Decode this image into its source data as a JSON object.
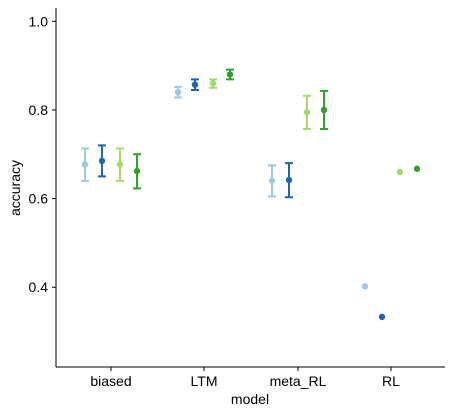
{
  "chart_data": {
    "type": "scatter",
    "xlabel": "model",
    "ylabel": "accuracy",
    "ylim": [
      0.22,
      1.03
    ],
    "yticks": [
      0.4,
      0.6,
      0.8,
      1.0
    ],
    "ytick_labels": [
      "0.4",
      "0.6",
      "0.8",
      "1.0"
    ],
    "categories": [
      "biased",
      "LTM",
      "meta_RL",
      "RL"
    ],
    "legend": "none",
    "grid": false,
    "series": [
      {
        "color": "#9ecae1",
        "values": [
          0.677,
          0.84,
          0.64,
          0.402
        ],
        "lower": [
          0.64,
          0.828,
          0.605,
          null
        ],
        "upper": [
          0.713,
          0.852,
          0.675,
          null
        ]
      },
      {
        "color": "#2166ac",
        "values": [
          0.685,
          0.857,
          0.642,
          0.333
        ],
        "lower": [
          0.65,
          0.845,
          0.603,
          null
        ],
        "upper": [
          0.72,
          0.869,
          0.68,
          null
        ]
      },
      {
        "color": "#a6d96a",
        "values": [
          0.677,
          0.86,
          0.795,
          0.66
        ],
        "lower": [
          0.64,
          0.85,
          0.757,
          null
        ],
        "upper": [
          0.713,
          0.869,
          0.832,
          null
        ]
      },
      {
        "color": "#33a02c",
        "values": [
          0.662,
          0.88,
          0.8,
          0.667
        ],
        "lower": [
          0.623,
          0.869,
          0.757,
          null
        ],
        "upper": [
          0.7,
          0.891,
          0.843,
          null
        ]
      }
    ]
  }
}
